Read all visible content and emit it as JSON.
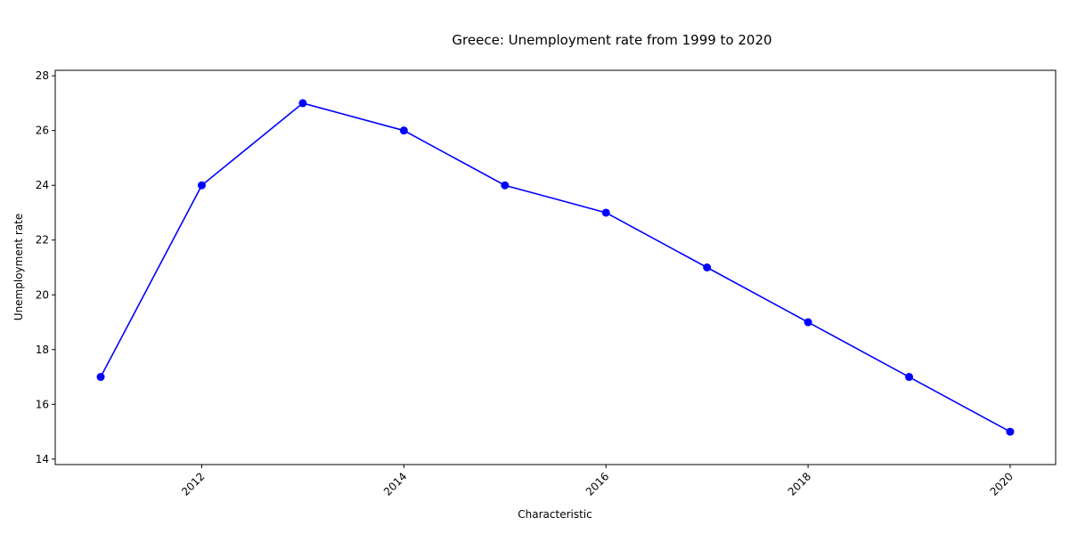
{
  "chart_data": {
    "type": "line",
    "title": "Greece: Unemployment rate from 1999 to 2020",
    "xlabel": "Characteristic",
    "ylabel": "Unemployment rate",
    "x": [
      2011,
      2012,
      2013,
      2014,
      2015,
      2016,
      2017,
      2018,
      2019,
      2020
    ],
    "series": [
      {
        "values": [
          17,
          24,
          27,
          26,
          24,
          23,
          21,
          19,
          17,
          15
        ]
      }
    ],
    "xlim": [
      2010.55,
      2020.45
    ],
    "ylim": [
      13.8,
      28.2
    ],
    "xticks": [
      2012,
      2014,
      2016,
      2018,
      2020
    ],
    "xtick_labels": [
      "2012",
      "2014",
      "2016",
      "2018",
      "2020"
    ],
    "yticks": [
      14,
      16,
      18,
      20,
      22,
      24,
      26,
      28
    ],
    "ytick_labels": [
      "14",
      "16",
      "18",
      "20",
      "22",
      "24",
      "26",
      "28"
    ],
    "line_color": "#0000ff",
    "marker": "circle",
    "grid": false,
    "legend": "none"
  }
}
